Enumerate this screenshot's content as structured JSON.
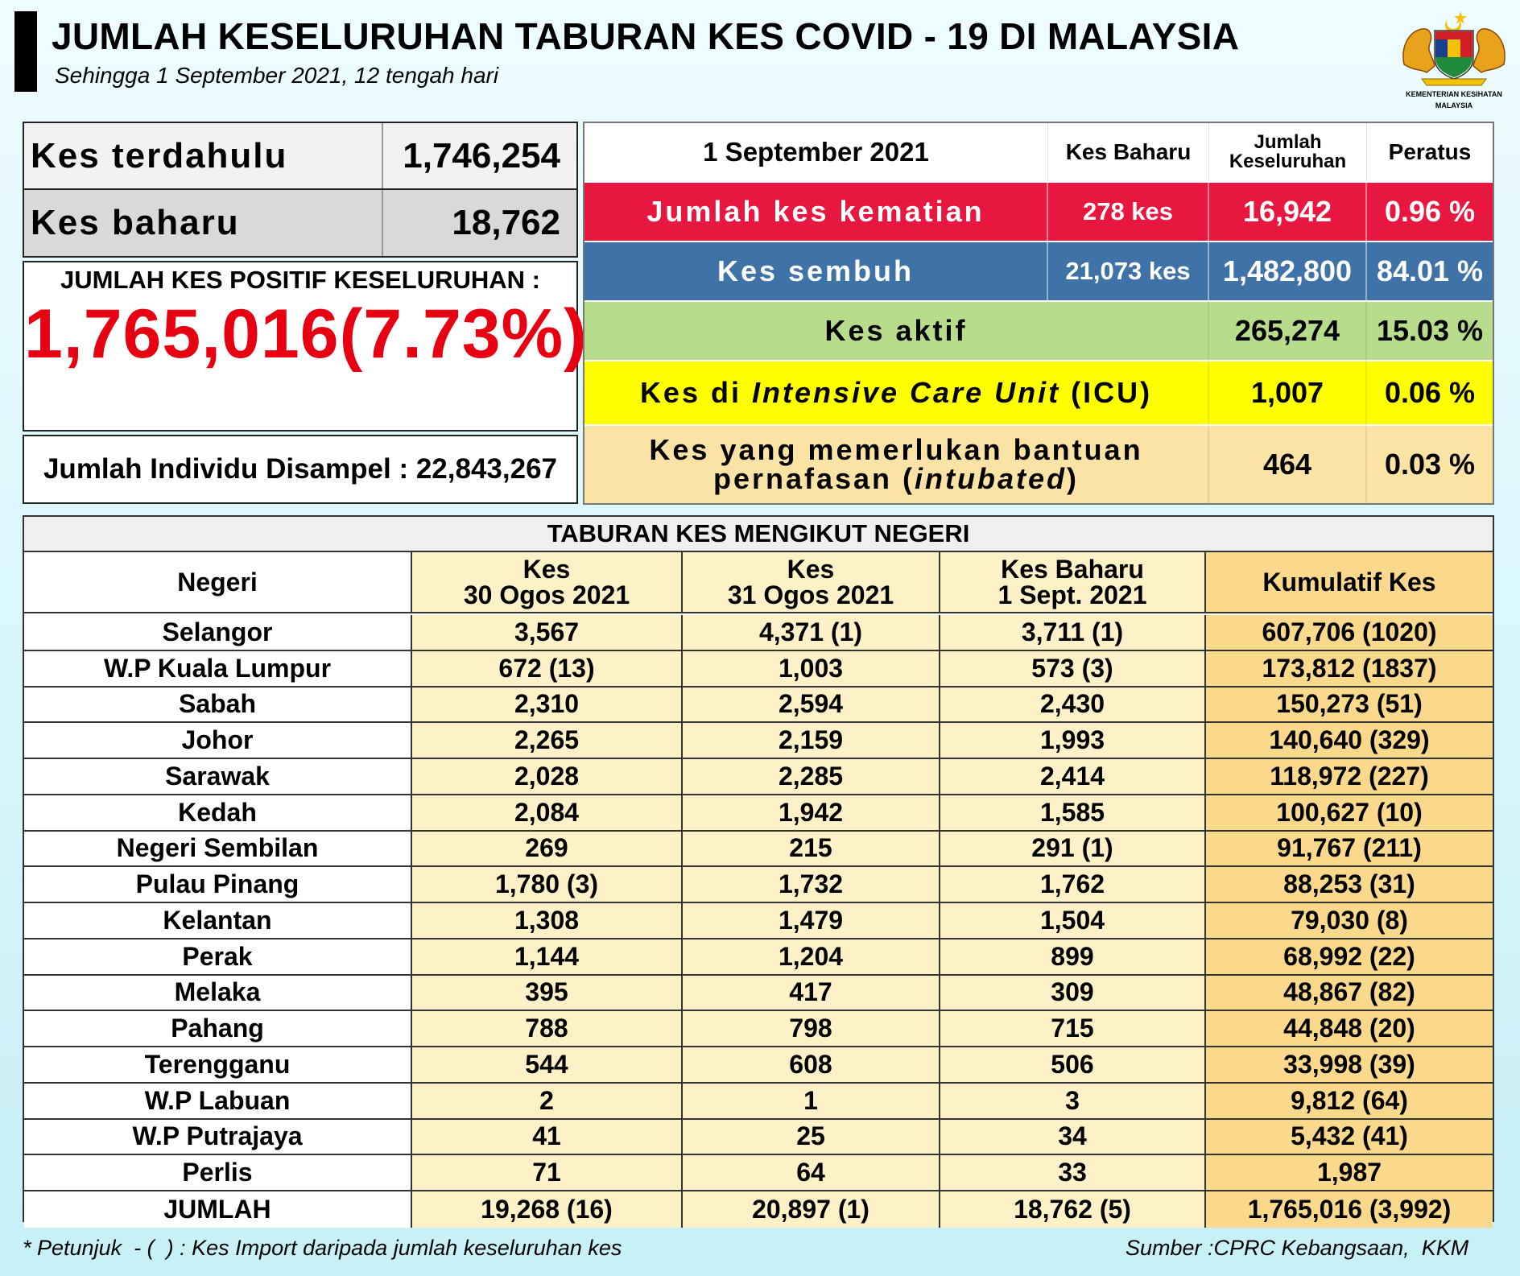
{
  "header": {
    "title": "JUMLAH KESELURUHAN TABURAN KES COVID - 19 DI MALAYSIA",
    "subtitle": "Sehingga 1 September 2021, 12 tengah hari",
    "crest_text": "KEMENTERIAN KESIHATAN\nMALAYSIA",
    "crest_icon": "malaysia-coat-of-arms-icon"
  },
  "left": {
    "kes_terdahulu_label": "Kes terdahulu",
    "kes_terdahulu_value": "1,746,254",
    "kes_baharu_label": "Kes baharu",
    "kes_baharu_value": "18,762",
    "positif_label": "JUMLAH KES POSITIF KESELURUHAN :",
    "positif_value": "1,765,016(7.73%)",
    "disampel": "Jumlah Individu Disampel : 22,843,267"
  },
  "summary": {
    "header": {
      "date": "1 September 2021",
      "kes_baharu": "Kes Baharu",
      "jumlah_1": "Jumlah",
      "jumlah_2": "Keseluruhan",
      "peratus": "Peratus"
    },
    "kematian": {
      "label": "Jumlah kes kematian",
      "baharu": "278 kes",
      "jumlah": "16,942",
      "peratus": "0.96 %"
    },
    "sembuh": {
      "label": "Kes sembuh",
      "baharu": "21,073 kes",
      "jumlah": "1,482,800",
      "peratus": "84.01 %"
    },
    "aktif": {
      "label": "Kes aktif",
      "jumlah": "265,274",
      "peratus": "15.03 %"
    },
    "icu": {
      "label_pre": "Kes di ",
      "label_em": "Intensive Care Unit",
      "label_post": " (ICU)",
      "jumlah": "1,007",
      "peratus": "0.06 %"
    },
    "intubated": {
      "line1": "Kes yang memerlukan bantuan",
      "line2_pre": "pernafasan (",
      "line2_em": "intubated",
      "line2_post": ")",
      "jumlah": "464",
      "peratus": "0.03 %"
    }
  },
  "states": {
    "title": "TABURAN KES MENGIKUT NEGERI",
    "headers": {
      "negeri": "Negeri",
      "c2_1": "Kes",
      "c2_2": "30 Ogos 2021",
      "c3_1": "Kes",
      "c3_2": "31 Ogos 2021",
      "c4_1": "Kes Baharu",
      "c4_2": "1 Sept. 2021",
      "c5": "Kumulatif Kes"
    },
    "rows": [
      [
        "Selangor",
        "3,567",
        "4,371 (1)",
        "3,711 (1)",
        "607,706 (1020)"
      ],
      [
        "W.P Kuala Lumpur",
        "672 (13)",
        "1,003",
        "573 (3)",
        "173,812 (1837)"
      ],
      [
        "Sabah",
        "2,310",
        "2,594",
        "2,430",
        "150,273 (51)"
      ],
      [
        "Johor",
        "2,265",
        "2,159",
        "1,993",
        "140,640 (329)"
      ],
      [
        "Sarawak",
        "2,028",
        "2,285",
        "2,414",
        "118,972 (227)"
      ],
      [
        "Kedah",
        "2,084",
        "1,942",
        "1,585",
        "100,627 (10)"
      ],
      [
        "Negeri Sembilan",
        "269",
        "215",
        "291 (1)",
        "91,767 (211)"
      ],
      [
        "Pulau Pinang",
        "1,780 (3)",
        "1,732",
        "1,762",
        "88,253 (31)"
      ],
      [
        "Kelantan",
        "1,308",
        "1,479",
        "1,504",
        "79,030 (8)"
      ],
      [
        "Perak",
        "1,144",
        "1,204",
        "899",
        "68,992 (22)"
      ],
      [
        "Melaka",
        "395",
        "417",
        "309",
        "48,867 (82)"
      ],
      [
        "Pahang",
        "788",
        "798",
        "715",
        "44,848 (20)"
      ],
      [
        "Terengganu",
        "544",
        "608",
        "506",
        "33,998 (39)"
      ],
      [
        "W.P Labuan",
        "2",
        "1",
        "3",
        "9,812 (64)"
      ],
      [
        "W.P Putrajaya",
        "41",
        "25",
        "34",
        "5,432 (41)"
      ],
      [
        "Perlis",
        "71",
        "64",
        "33",
        "1,987"
      ],
      [
        "JUMLAH",
        "19,268 (16)",
        "20,897 (1)",
        "18,762 (5)",
        "1,765,016 (3,992)"
      ]
    ]
  },
  "footer": {
    "note": "* Petunjuk  - (  ) : Kes Import daripada jumlah keseluruhan kes",
    "source": "Sumber :CPRC Kebangsaan,  KKM"
  }
}
